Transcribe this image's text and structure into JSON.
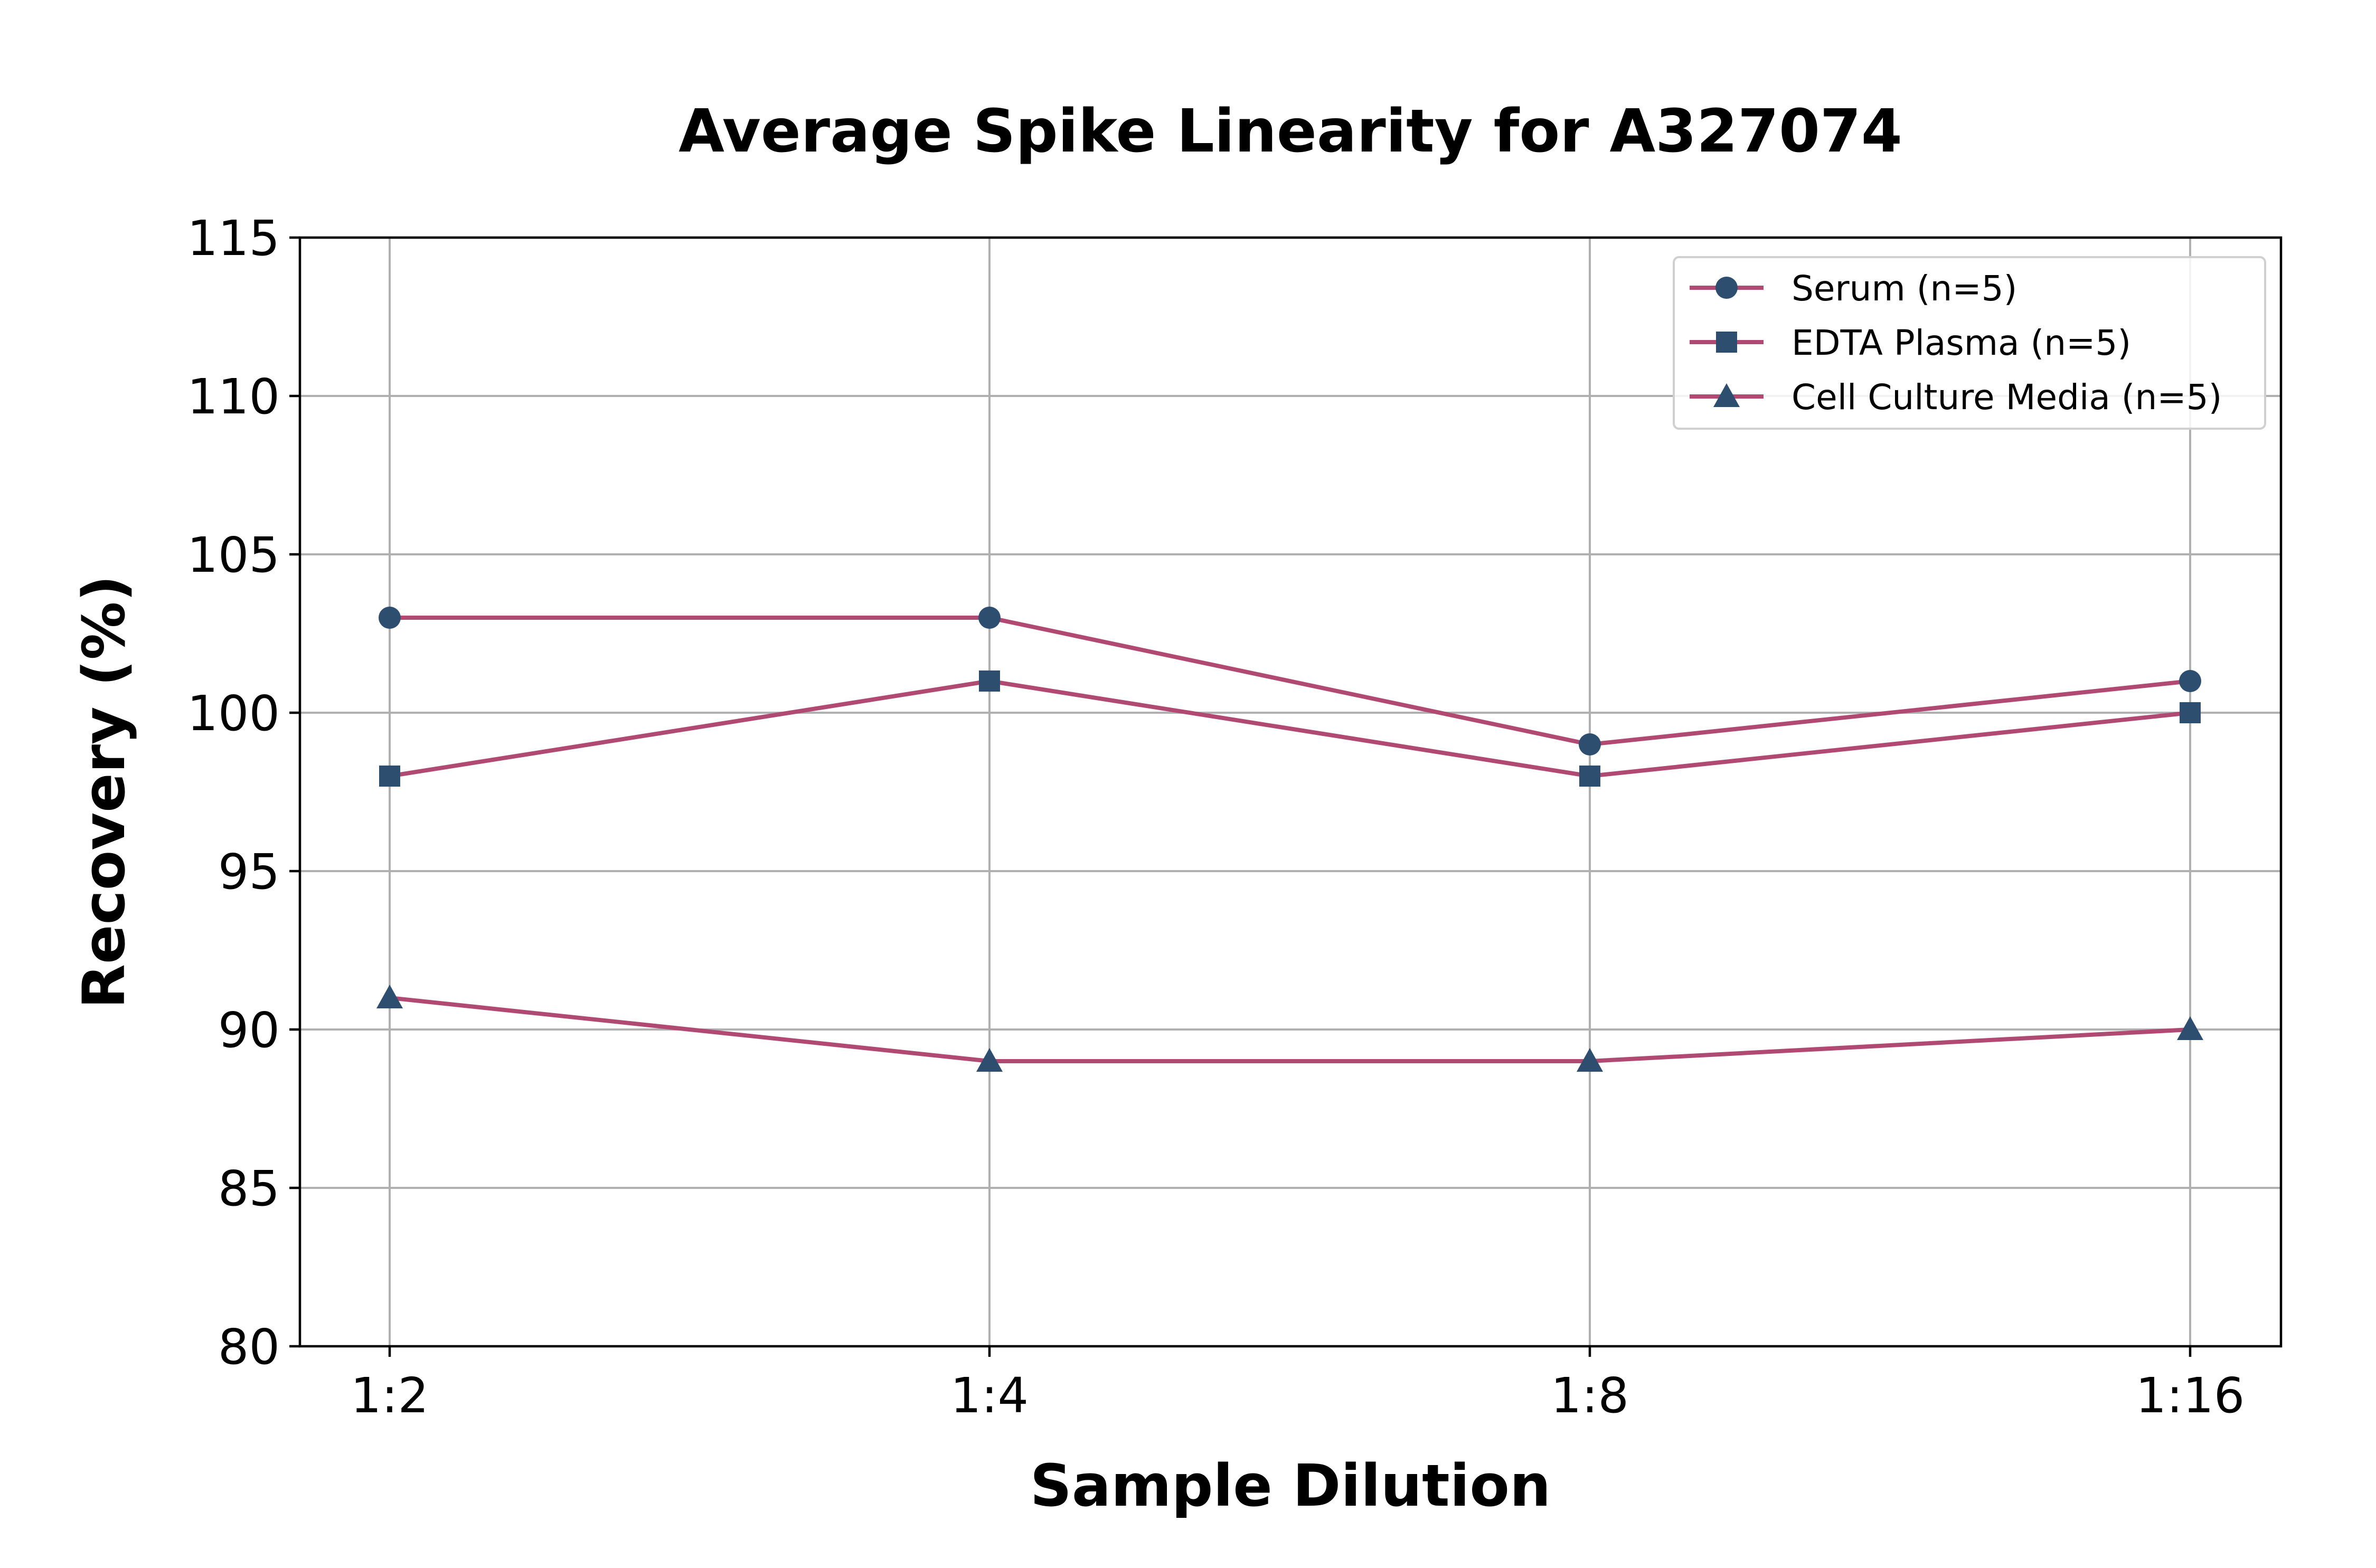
{
  "chart_data": {
    "type": "line",
    "title": "Average Spike Linearity for A327074",
    "xlabel": "Sample Dilution",
    "ylabel": "Recovery (%)",
    "categories": [
      "1:2",
      "1:4",
      "1:8",
      "1:16"
    ],
    "ylim": [
      80,
      115
    ],
    "yticks": [
      80,
      85,
      90,
      95,
      100,
      105,
      110,
      115
    ],
    "grid": true,
    "legend_position": "top-right",
    "line_color": "#b04a72",
    "marker_color": "#2d4e6e",
    "series": [
      {
        "name": "Serum (n=5)",
        "marker": "circle",
        "values": [
          103,
          103,
          99,
          101
        ]
      },
      {
        "name": "EDTA Plasma (n=5)",
        "marker": "square",
        "values": [
          98,
          101,
          98,
          100
        ]
      },
      {
        "name": "Cell Culture Media (n=5)",
        "marker": "triangle",
        "values": [
          91,
          89,
          89,
          90
        ]
      }
    ]
  }
}
